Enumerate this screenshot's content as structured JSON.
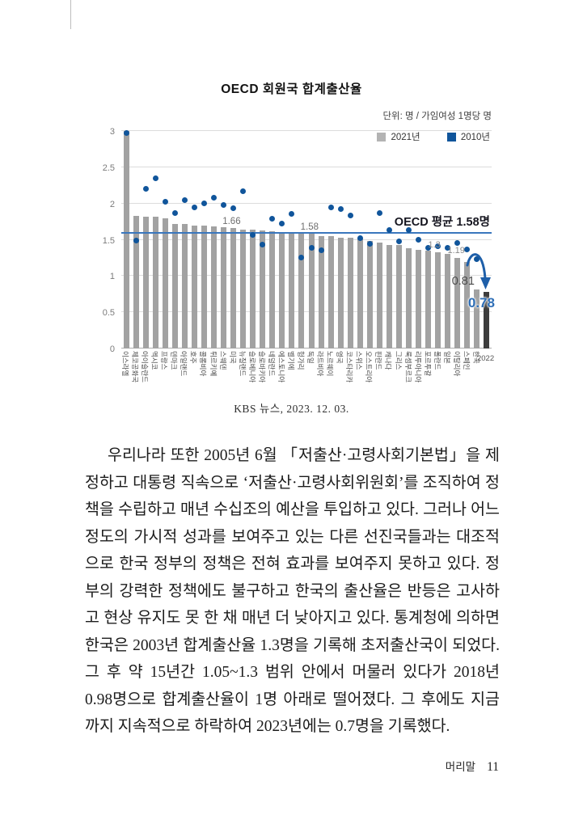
{
  "page": {
    "footer_label": "머리말",
    "footer_page": "11"
  },
  "chart": {
    "title": "OECD 회원국 합계출산율",
    "unit_label": "단위: 명 / 가임여성 1명당 명",
    "source": "KBS 뉴스, 2023. 12. 03."
  },
  "chart_data": {
    "type": "bar",
    "title": "OECD 회원국 합계출산율",
    "unit": "명 / 가임여성 1명당 명",
    "categories": [
      "이스라엘",
      "체코공화국",
      "아이슬란드",
      "멕시코",
      "프랑스",
      "덴마크",
      "아일랜드",
      "호주",
      "콜롬비아",
      "튀르키예",
      "스웨덴",
      "미국",
      "뉴질랜드",
      "슬로베니아",
      "슬로바키아",
      "네덜란드",
      "에스토니아",
      "벨기에",
      "헝가리",
      "독일",
      "라트비아",
      "노르웨이",
      "영국",
      "코스타리카",
      "스위스",
      "오스트리아",
      "핀란드",
      "캐나다",
      "그리스",
      "룩셈부르크",
      "리투아니아",
      "포르투갈",
      "폴란드",
      "일본",
      "이탈리아",
      "스페인",
      "한국",
      "2022"
    ],
    "series": [
      {
        "name": "2021년",
        "type": "bar",
        "color": "#a2a2a2",
        "values": [
          3.0,
          1.83,
          1.82,
          1.82,
          1.8,
          1.72,
          1.72,
          1.7,
          1.69,
          1.68,
          1.67,
          1.66,
          1.64,
          1.64,
          1.63,
          1.62,
          1.61,
          1.6,
          1.59,
          1.58,
          1.55,
          1.55,
          1.53,
          1.53,
          1.52,
          1.48,
          1.46,
          1.43,
          1.43,
          1.38,
          1.36,
          1.35,
          1.33,
          1.3,
          1.25,
          1.19,
          0.81,
          0.78
        ]
      },
      {
        "name": "2010년",
        "type": "scatter",
        "color": "#10559b",
        "values": [
          2.97,
          1.49,
          2.2,
          2.35,
          2.02,
          1.87,
          2.05,
          1.95,
          2.0,
          2.08,
          1.98,
          1.93,
          2.17,
          1.57,
          1.43,
          1.79,
          1.72,
          1.86,
          1.25,
          1.39,
          1.36,
          1.95,
          1.92,
          1.84,
          1.52,
          1.44,
          1.87,
          1.63,
          1.48,
          1.63,
          1.5,
          1.39,
          1.41,
          1.39,
          1.46,
          1.37,
          1.23,
          null
        ]
      }
    ],
    "ylim": [
      0,
      3
    ],
    "yticks": [
      0,
      0.5,
      1,
      1.5,
      2,
      2.5,
      3
    ],
    "grid": true,
    "legend_position": "top-right",
    "average_line": {
      "value": 1.58,
      "label": "OECD 평균 1.58명",
      "color": "#3a77bd"
    },
    "annotations": [
      {
        "text": "1.66",
        "target": "미국"
      },
      {
        "text": "1.58",
        "target": "독일"
      },
      {
        "text": "1.3",
        "target": "일본"
      },
      {
        "text": "1.19",
        "target": "스페인"
      },
      {
        "text": "0.81",
        "target": "한국"
      },
      {
        "text": "0.78",
        "target": "2022",
        "emphasis": true
      }
    ],
    "highlight_category": "2022",
    "highlight_color": "#3d3d3d",
    "source": "KBS 뉴스, 2023. 12. 03."
  },
  "body": {
    "paragraph": "우리나라 또한 2005년 6월 「저출산·고령사회기본법」을 제정하고 대통령 직속으로 ‘저출산·고령사회위원회’를 조직하여 정책을 수립하고 매년 수십조의 예산을 투입하고 있다. 그러나 어느 정도의 가시적 성과를 보여주고 있는 다른 선진국들과는 대조적으로 한국 정부의 정책은 전혀 효과를 보여주지 못하고 있다. 정부의 강력한 정책에도 불구하고 한국의 출산율은 반등은 고사하고 현상 유지도 못 한 채 매년 더 낮아지고 있다. 통계청에 의하면 한국은 2003년 합계출산율 1.3명을 기록해 초저출산국이 되었다. 그 후 약 15년간 1.05~1.3 범위 안에서 머물러 있다가 2018년 0.98명으로 합계출산율이 1명 아래로 떨어졌다. 그 후에도 지금까지 지속적으로 하락하여 2023년에는 0.7명을 기록했다."
  }
}
